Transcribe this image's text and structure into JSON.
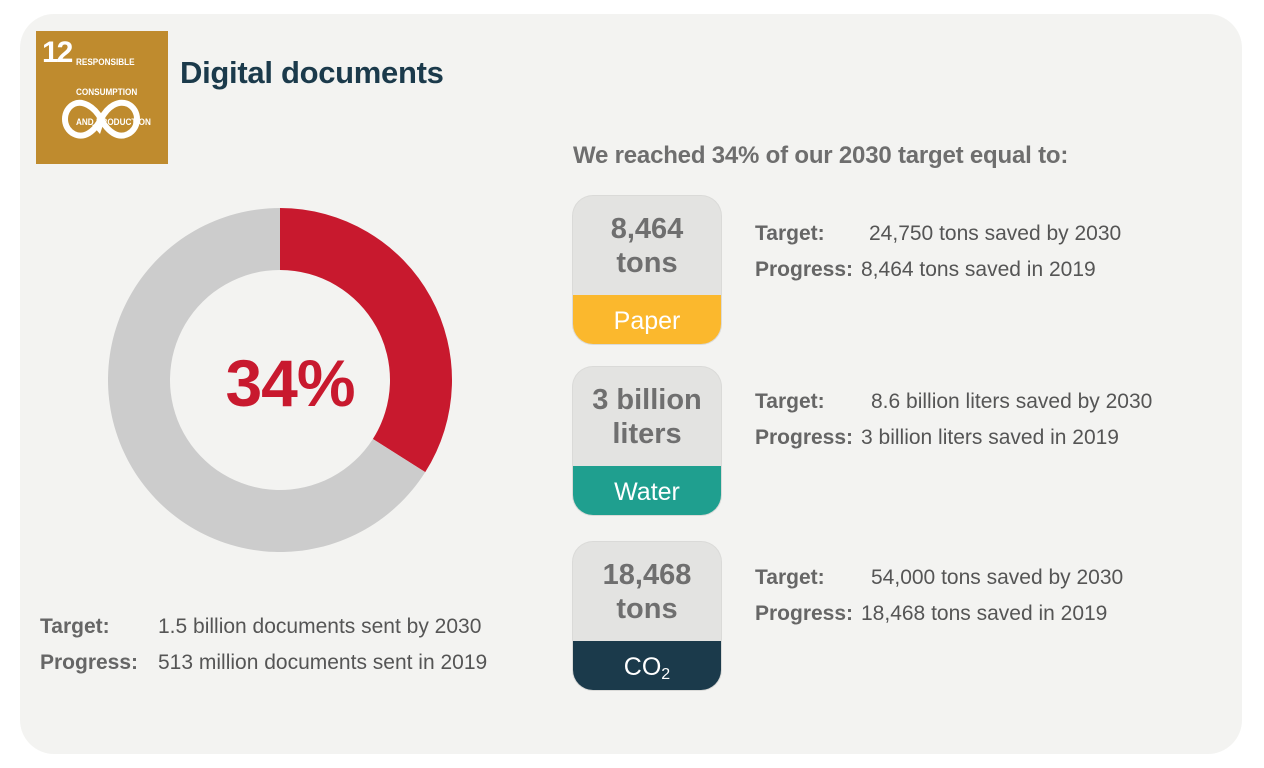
{
  "sdg": {
    "number": "12",
    "lines": [
      "RESPONSIBLE",
      "CONSUMPTION",
      "AND PRODUCTION"
    ],
    "color": "#bf8b2e",
    "icon": "infinity-arrow-icon"
  },
  "title": "Digital documents",
  "chart_data": {
    "type": "pie",
    "style": "donut",
    "slices": [
      {
        "label": "Progress",
        "value": 34,
        "color": "#c8192e"
      },
      {
        "label": "Remaining",
        "value": 66,
        "color": "#cccccc"
      }
    ],
    "center_label": "34%",
    "title": "Digital documents",
    "legend": "none"
  },
  "documents": {
    "target_label": "Target:",
    "target_value": "1.5 billion documents sent by 2030",
    "progress_label": "Progress:",
    "progress_value": "513 million documents sent in 2019"
  },
  "subtitle": "We reached 34% of our 2030 target equal to:",
  "savings": [
    {
      "value": "8,464\ntons",
      "category": "Paper",
      "color": "#fbb82d",
      "target_label": "Target:",
      "target_value": "24,750 tons saved by 2030",
      "progress_label": "Progress:",
      "progress_value": "8,464 tons saved in 2019"
    },
    {
      "value": "3 billion\nliters",
      "category": "Water",
      "color": "#1f9f8f",
      "target_label": "Target:",
      "target_value": "8.6 billion liters saved by 2030",
      "progress_label": "Progress:",
      "progress_value": "3 billion liters saved in 2019"
    },
    {
      "value": "18,468\ntons",
      "category": "CO",
      "category_subscript": "2",
      "color": "#1b3a4b",
      "target_label": "Target:",
      "target_value": "54,000 tons saved by 2030",
      "progress_label": "Progress:",
      "progress_value": "18,468 tons saved in 2019"
    }
  ]
}
